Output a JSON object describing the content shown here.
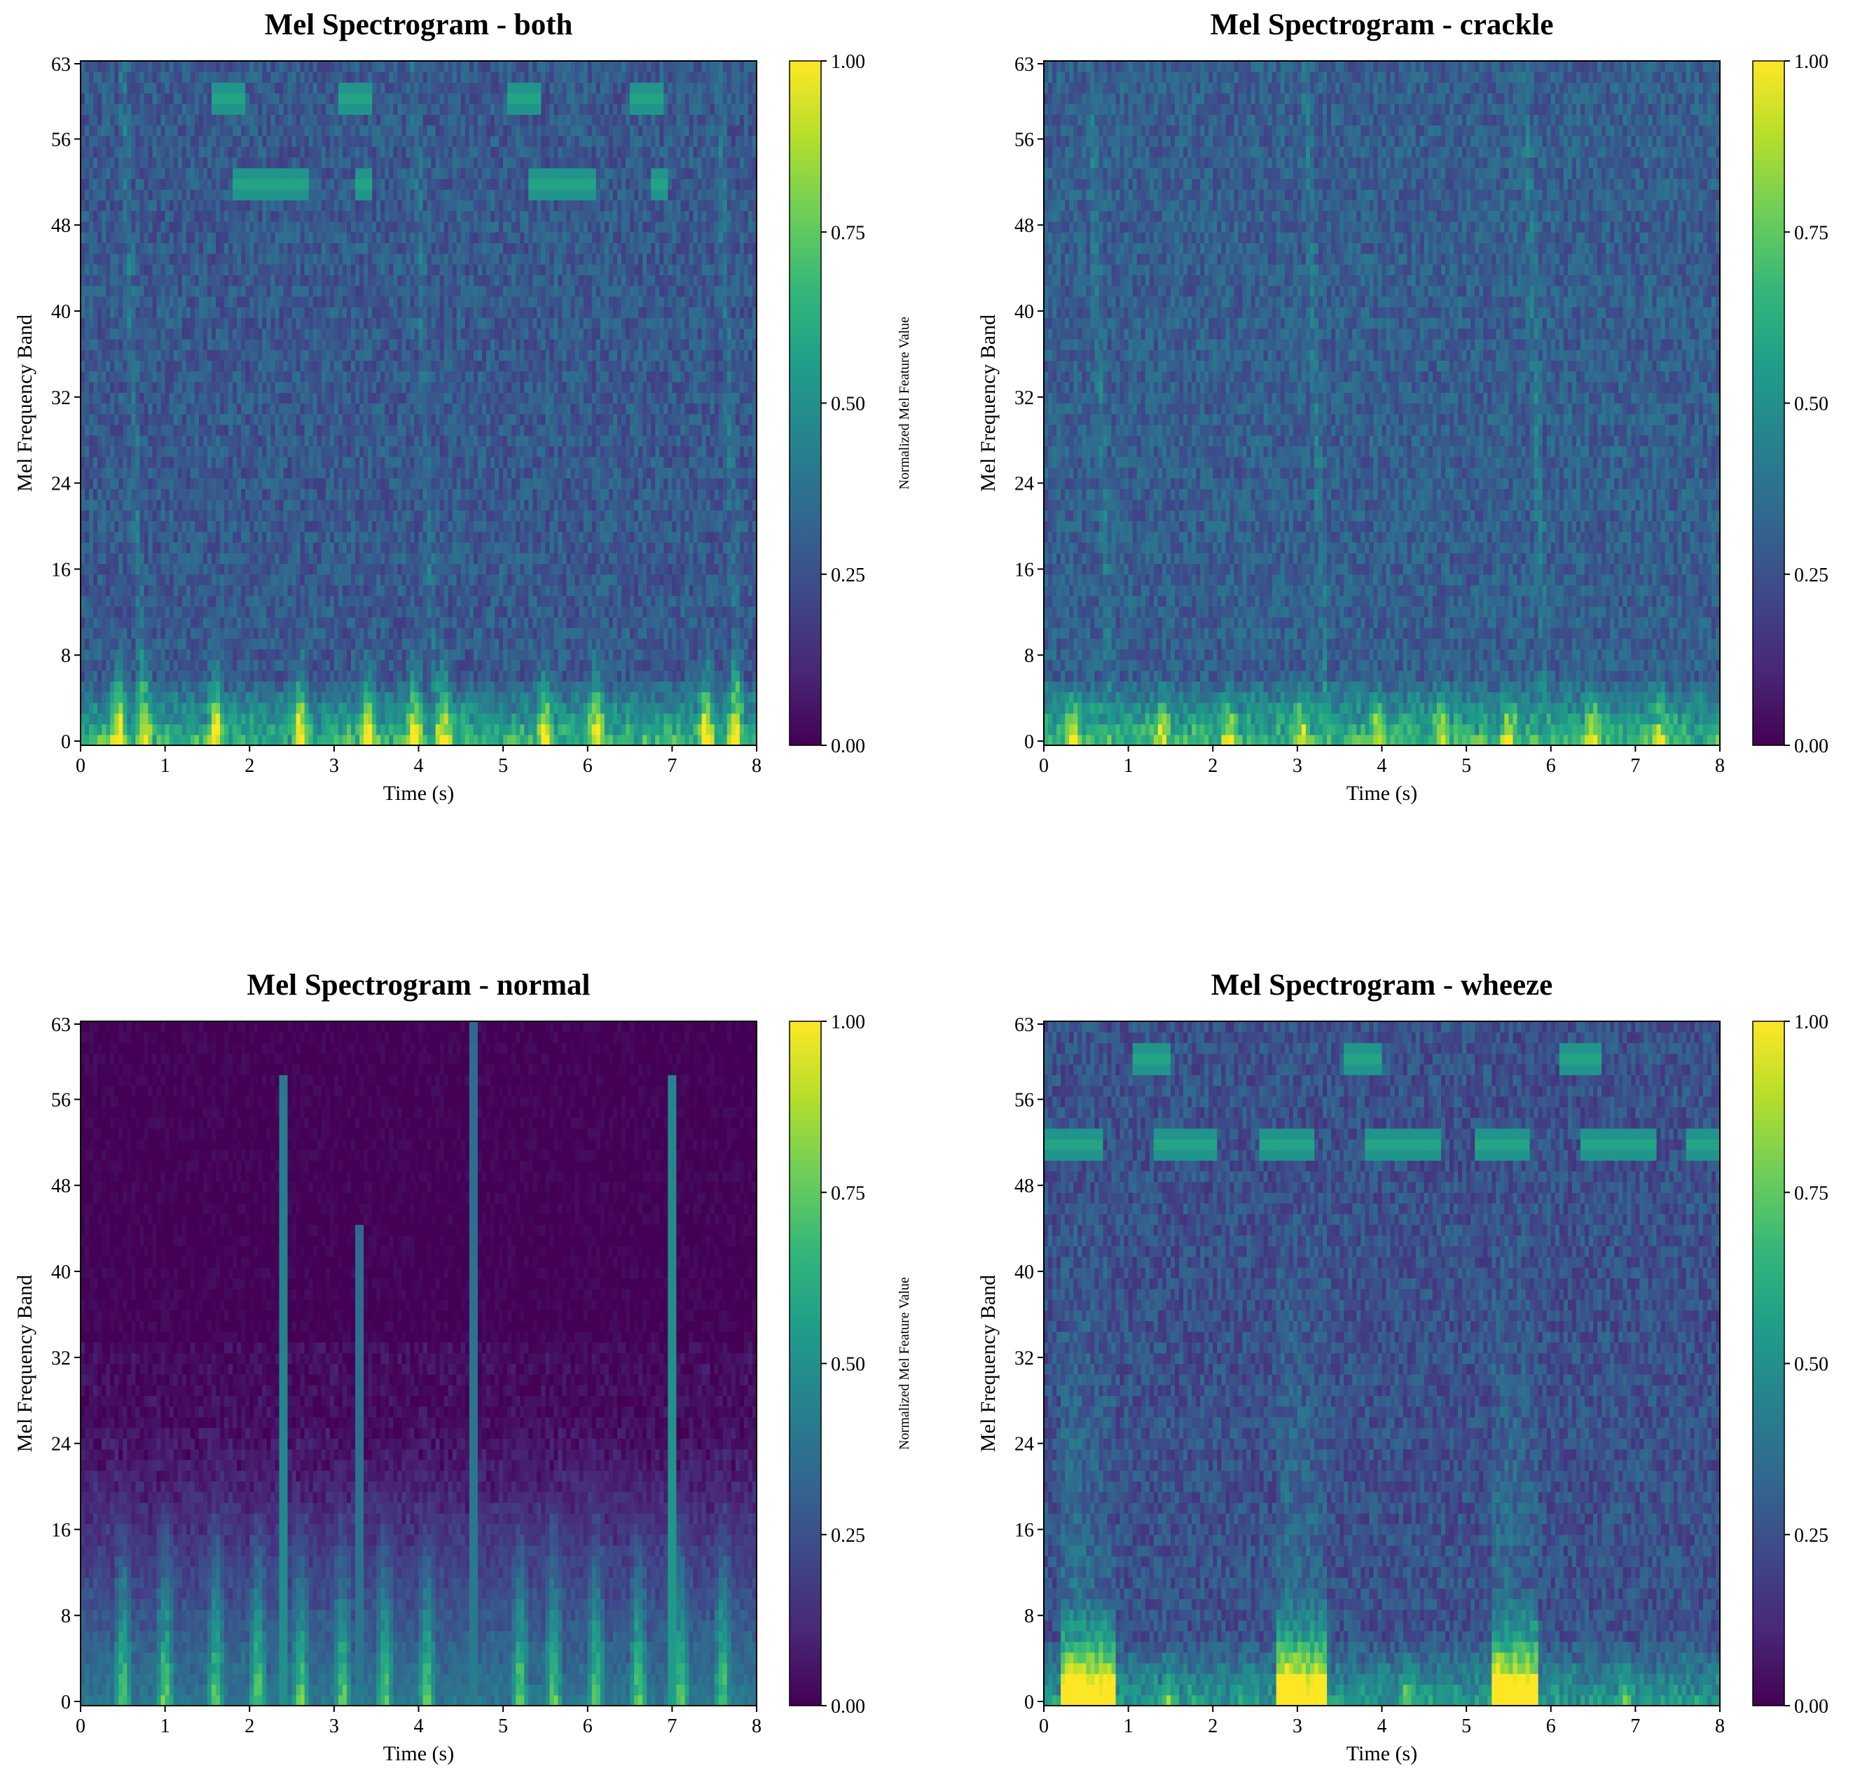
{
  "colormap": "viridis",
  "colormap_stops": [
    "#440154",
    "#482878",
    "#3e4989",
    "#31688e",
    "#26828e",
    "#1f9e89",
    "#35b779",
    "#6ece58",
    "#b5de2b",
    "#fde725"
  ],
  "chart_data": [
    {
      "id": "both",
      "type": "heatmap",
      "title": "Mel Spectrogram - both",
      "xlabel": "Time (s)",
      "ylabel": "Mel Frequency Band",
      "xlim": [
        0,
        8
      ],
      "ylim": [
        0,
        63
      ],
      "xticks": [
        "0",
        "1",
        "2",
        "3",
        "4",
        "5",
        "6",
        "7",
        "8"
      ],
      "yticks": [
        "0",
        "8",
        "16",
        "24",
        "32",
        "40",
        "48",
        "56",
        "63"
      ],
      "colorbar": {
        "label": "Normalized Mel Feature Value",
        "range": [
          0,
          1
        ],
        "ticks": [
          "0.00",
          "0.25",
          "0.50",
          "0.75",
          "1.00"
        ]
      },
      "background_level": 0.28,
      "noise": 0.1,
      "low_band_boost": 0.45,
      "events": [
        0.45,
        0.75,
        1.6,
        2.6,
        3.4,
        3.95,
        4.3,
        5.5,
        6.1,
        7.4,
        7.75
      ],
      "event_strength": 0.6,
      "event_height": 10,
      "faint_ridges": [
        0.75,
        4.2,
        7.8
      ],
      "horizontal_tones": [
        {
          "band": 60,
          "t0": 1.55,
          "t1": 1.95
        },
        {
          "band": 60,
          "t0": 3.05,
          "t1": 3.45
        },
        {
          "band": 60,
          "t0": 5.05,
          "t1": 5.45
        },
        {
          "band": 60,
          "t0": 6.5,
          "t1": 6.9
        },
        {
          "band": 52,
          "t0": 1.8,
          "t1": 2.7
        },
        {
          "band": 52,
          "t0": 3.25,
          "t1": 3.45
        },
        {
          "band": 52,
          "t0": 5.3,
          "t1": 6.1
        },
        {
          "band": 52,
          "t0": 6.75,
          "t1": 6.95
        }
      ]
    },
    {
      "id": "crackle",
      "type": "heatmap",
      "title": "Mel Spectrogram - crackle",
      "xlabel": "Time (s)",
      "ylabel": "Mel Frequency Band",
      "xlim": [
        0,
        8
      ],
      "ylim": [
        0,
        63
      ],
      "xticks": [
        "0",
        "1",
        "2",
        "3",
        "4",
        "5",
        "6",
        "7",
        "8"
      ],
      "yticks": [
        "0",
        "8",
        "16",
        "24",
        "32",
        "40",
        "48",
        "56",
        "63"
      ],
      "colorbar": {
        "label": "Normalized Mel Feature Value",
        "range": [
          0,
          1
        ],
        "ticks": [
          "0.00",
          "0.25",
          "0.50",
          "0.75",
          "1.00"
        ]
      },
      "background_level": 0.3,
      "noise": 0.1,
      "low_band_boost": 0.45,
      "events": [
        0.35,
        1.4,
        2.2,
        3.05,
        3.95,
        4.7,
        5.5,
        6.5,
        7.3
      ],
      "event_strength": 0.45,
      "event_height": 6,
      "faint_ridges": [
        0.8,
        3.35,
        5.95
      ],
      "horizontal_tones": []
    },
    {
      "id": "normal",
      "type": "heatmap",
      "title": "Mel Spectrogram - normal",
      "xlabel": "Time (s)",
      "ylabel": "Mel Frequency Band",
      "xlim": [
        0,
        8
      ],
      "ylim": [
        0,
        63
      ],
      "xticks": [
        "0",
        "1",
        "2",
        "3",
        "4",
        "5",
        "6",
        "7",
        "8"
      ],
      "yticks": [
        "0",
        "8",
        "16",
        "24",
        "32",
        "40",
        "48",
        "56",
        "63"
      ],
      "colorbar": {
        "label": "Normalized Mel Feature Value",
        "range": [
          0,
          1
        ],
        "ticks": [
          "0.00",
          "0.25",
          "0.50",
          "0.75",
          "1.00"
        ]
      },
      "background_level": 0.0,
      "noise": 0.04,
      "low_band_boost": 0.7,
      "low_band_top": 26,
      "events": [
        0.5,
        1.0,
        1.6,
        2.1,
        2.6,
        3.1,
        3.6,
        4.1,
        5.2,
        5.6,
        6.1,
        6.6,
        7.1,
        7.6
      ],
      "event_strength": 0.5,
      "event_height": 20,
      "vertical_lines": [
        {
          "t": 2.4,
          "top": 58,
          "strength": 0.5
        },
        {
          "t": 3.3,
          "top": 44,
          "strength": 0.4
        },
        {
          "t": 4.65,
          "top": 63,
          "strength": 0.42
        },
        {
          "t": 7.0,
          "top": 58,
          "strength": 0.55
        }
      ],
      "horizontal_tones": []
    },
    {
      "id": "wheeze",
      "type": "heatmap",
      "title": "Mel Spectrogram - wheeze",
      "xlabel": "Time (s)",
      "ylabel": "Mel Frequency Band",
      "xlim": [
        0,
        8
      ],
      "ylim": [
        0,
        63
      ],
      "xticks": [
        "0",
        "1",
        "2",
        "3",
        "4",
        "5",
        "6",
        "7",
        "8"
      ],
      "yticks": [
        "0",
        "8",
        "16",
        "24",
        "32",
        "40",
        "48",
        "56",
        "63"
      ],
      "colorbar": {
        "label": "Normalized Mel Feature Value",
        "range": [
          0,
          1
        ],
        "ticks": [
          "0.00",
          "0.25",
          "0.50",
          "0.75",
          "1.00"
        ]
      },
      "background_level": 0.25,
      "noise": 0.1,
      "low_band_boost": 0.35,
      "events": [
        0.4,
        1.5,
        2.9,
        4.3,
        5.4,
        6.9
      ],
      "event_strength": 0.3,
      "event_height": 6,
      "wide_bursts": [
        {
          "t0": 0.2,
          "t1": 0.85
        },
        {
          "t0": 2.75,
          "t1": 3.35
        },
        {
          "t0": 5.3,
          "t1": 5.85
        }
      ],
      "horizontal_tones": [
        {
          "band": 60,
          "t0": 1.05,
          "t1": 1.5
        },
        {
          "band": 60,
          "t0": 3.55,
          "t1": 4.0
        },
        {
          "band": 60,
          "t0": 6.1,
          "t1": 6.6
        },
        {
          "band": 52,
          "t0": 0.0,
          "t1": 0.7
        },
        {
          "band": 52,
          "t0": 1.3,
          "t1": 2.05
        },
        {
          "band": 52,
          "t0": 2.55,
          "t1": 3.2
        },
        {
          "band": 52,
          "t0": 3.8,
          "t1": 4.7
        },
        {
          "band": 52,
          "t0": 5.1,
          "t1": 5.75
        },
        {
          "band": 52,
          "t0": 6.35,
          "t1": 7.25
        },
        {
          "band": 52,
          "t0": 7.6,
          "t1": 8.0
        }
      ]
    }
  ]
}
